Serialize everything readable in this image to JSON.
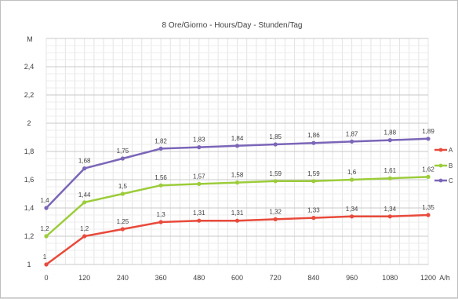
{
  "chart_data": {
    "type": "line",
    "title": "8 Ore/Giorno - Hours/Day - Stunden/Tag",
    "ylabel": "M",
    "xlabel": "A/h",
    "x": [
      0,
      120,
      240,
      360,
      480,
      600,
      720,
      840,
      960,
      1080,
      1200
    ],
    "x_tick_labels": [
      "0",
      "120",
      "240",
      "360",
      "480",
      "600",
      "720",
      "840",
      "960",
      "1080",
      "1200"
    ],
    "ylim": [
      1,
      2.6
    ],
    "y_ticks": [
      1,
      1.2,
      1.4,
      1.6,
      1.8,
      2,
      2.2,
      2.4
    ],
    "y_tick_labels": [
      "1",
      "1,2",
      "1,4",
      "1,6",
      "1,8",
      "2",
      "2,2",
      "2,4"
    ],
    "grid": true,
    "legend_position": "right",
    "series": [
      {
        "name": "A",
        "color": "#e84a3b",
        "values": [
          1,
          1.2,
          1.25,
          1.3,
          1.31,
          1.31,
          1.32,
          1.33,
          1.34,
          1.34,
          1.35
        ],
        "labels": [
          "1",
          "1,2",
          "1,25",
          "1,3",
          "1,31",
          "1,31",
          "1,32",
          "1,33",
          "1,34",
          "1,34",
          "1,35"
        ]
      },
      {
        "name": "B",
        "color": "#9ccc3a",
        "values": [
          1.2,
          1.44,
          1.5,
          1.56,
          1.57,
          1.58,
          1.59,
          1.59,
          1.6,
          1.61,
          1.62
        ],
        "labels": [
          "1,2",
          "1,44",
          "1,5",
          "1,56",
          "1,57",
          "1,58",
          "1,59",
          "1,59",
          "1,6",
          "1,61",
          "1,62"
        ]
      },
      {
        "name": "C",
        "color": "#7b66b8",
        "values": [
          1.4,
          1.68,
          1.75,
          1.82,
          1.83,
          1.84,
          1.85,
          1.86,
          1.87,
          1.88,
          1.89
        ],
        "labels": [
          "1,4",
          "1,68",
          "1,75",
          "1,82",
          "1,83",
          "1,84",
          "1,85",
          "1,86",
          "1,87",
          "1,88",
          "1,89"
        ]
      }
    ]
  }
}
